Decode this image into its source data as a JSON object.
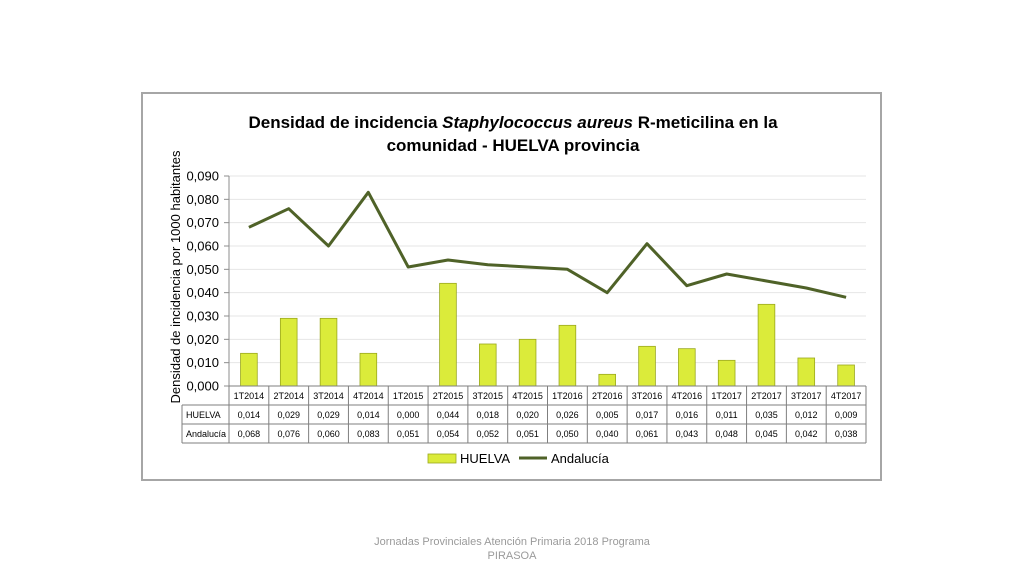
{
  "footer": {
    "line1": "Jornadas Provinciales Atención Primaria 2018  Programa",
    "line2": "PIRASOA"
  },
  "colors": {
    "huelva_fill": "#dbeb3a",
    "huelva_stroke": "#9aa81e",
    "andalucia_line": "#4f6228",
    "grid": "#e6e6e6",
    "table_border": "#7f7f7f"
  },
  "chart_data": {
    "type": "bar",
    "title_parts": [
      {
        "text": "Densidad de incidencia ",
        "italic": false
      },
      {
        "text": "Staphylococcus aureus",
        "italic": true
      },
      {
        "text": " R-meticilina en la",
        "italic": false
      }
    ],
    "title_line2": "comunidad - HUELVA provincia",
    "ylabel": "Densidad de incidencia por 1000 habitantes",
    "ylim": [
      0,
      0.09
    ],
    "yticks": [
      "0,000",
      "0,010",
      "0,020",
      "0,030",
      "0,040",
      "0,050",
      "0,060",
      "0,070",
      "0,080",
      "0,090"
    ],
    "grid": true,
    "legend_position": "bottom",
    "categories": [
      "1T2014",
      "2T2014",
      "3T2014",
      "4T2014",
      "1T2015",
      "2T2015",
      "3T2015",
      "4T2015",
      "1T2016",
      "2T2016",
      "3T2016",
      "4T2016",
      "1T2017",
      "2T2017",
      "3T2017",
      "4T2017"
    ],
    "series": [
      {
        "name": "HUELVA",
        "kind": "bar",
        "values": [
          0.014,
          0.029,
          0.029,
          0.014,
          0.0,
          0.044,
          0.018,
          0.02,
          0.026,
          0.005,
          0.017,
          0.016,
          0.011,
          0.035,
          0.012,
          0.009
        ],
        "labels": [
          "0,014",
          "0,029",
          "0,029",
          "0,014",
          "0,000",
          "0,044",
          "0,018",
          "0,020",
          "0,026",
          "0,005",
          "0,017",
          "0,016",
          "0,011",
          "0,035",
          "0,012",
          "0,009"
        ]
      },
      {
        "name": "Andalucía",
        "kind": "line",
        "values": [
          0.068,
          0.076,
          0.06,
          0.083,
          0.051,
          0.054,
          0.052,
          0.051,
          0.05,
          0.04,
          0.061,
          0.043,
          0.048,
          0.045,
          0.042,
          0.038
        ],
        "labels": [
          "0,068",
          "0,076",
          "0,060",
          "0,083",
          "0,051",
          "0,054",
          "0,052",
          "0,051",
          "0,050",
          "0,040",
          "0,061",
          "0,043",
          "0,048",
          "0,045",
          "0,042",
          "0,038"
        ]
      }
    ]
  }
}
